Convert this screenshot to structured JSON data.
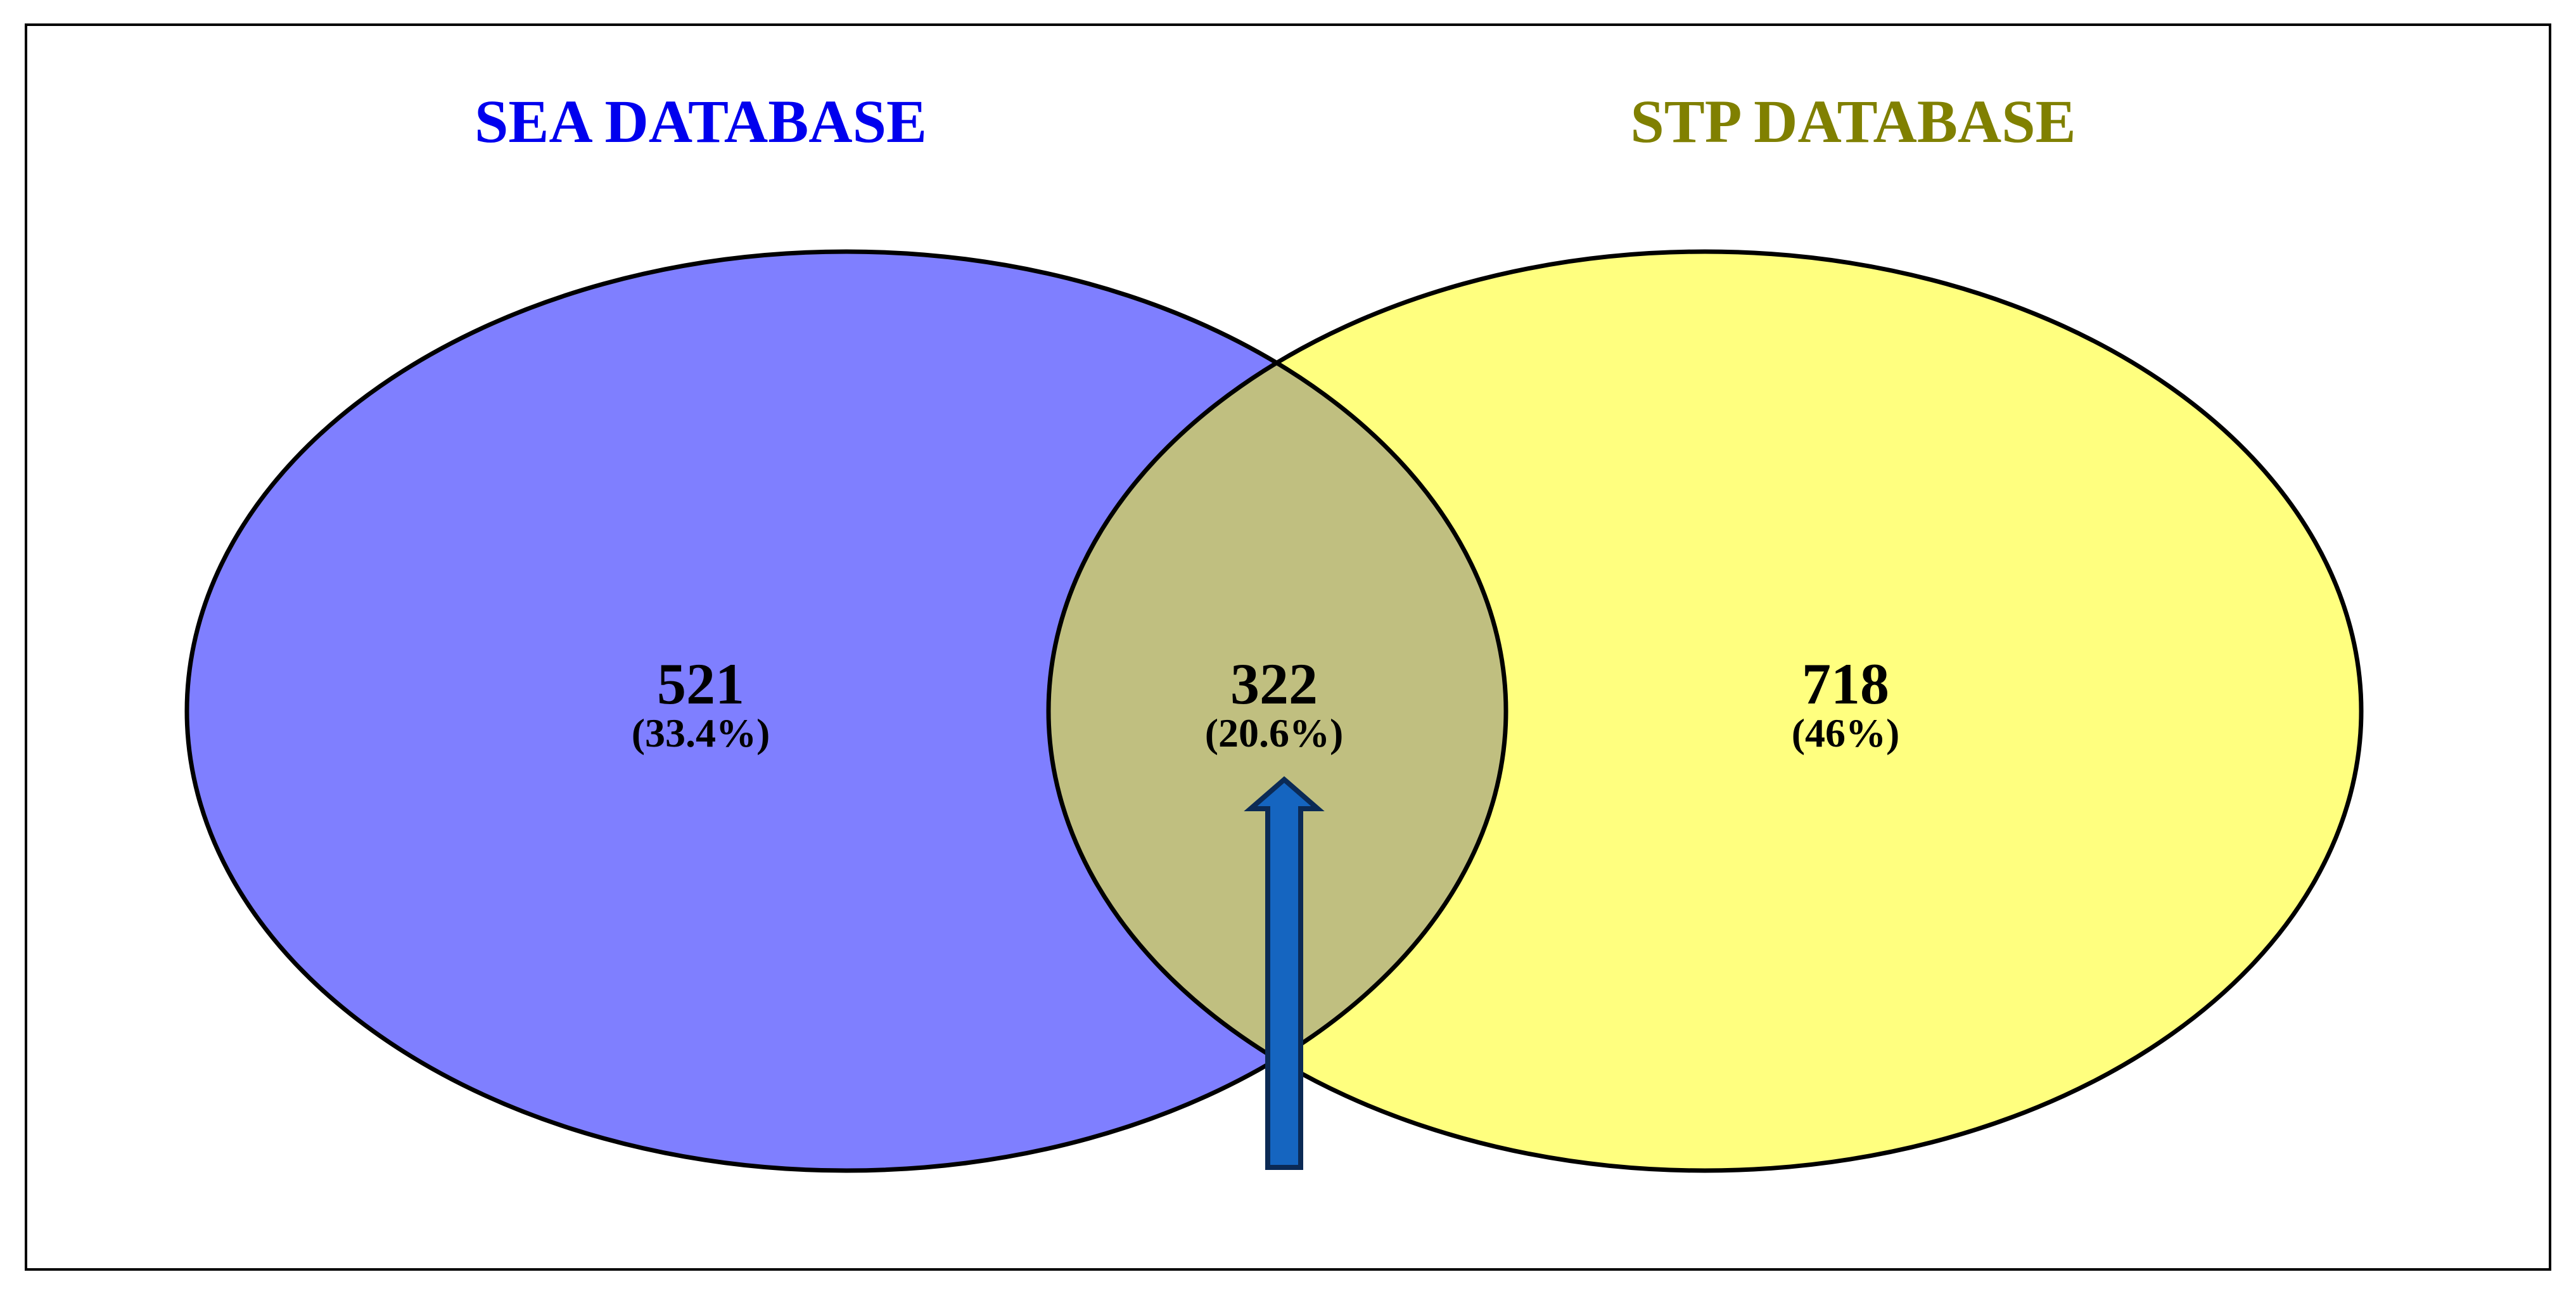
{
  "sets": {
    "left": {
      "title": "SEA DATABASE",
      "title_color": "#0000ee",
      "fill": "#7f7fff"
    },
    "right": {
      "title": "STP DATABASE",
      "title_color": "#808000",
      "fill": "#ffff7f"
    }
  },
  "intersection_fill": "#c0bf80",
  "regions": {
    "left_only": {
      "count": "521",
      "percent": "(33.4%)"
    },
    "overlap": {
      "count": "322",
      "percent": "(20.6%)"
    },
    "right_only": {
      "count": "718",
      "percent": "(46%)"
    }
  },
  "arrow": {
    "icon": "up-arrow-icon",
    "fill": "#1565c0",
    "stroke": "#0b2a55"
  },
  "frame_color": "#000000"
}
